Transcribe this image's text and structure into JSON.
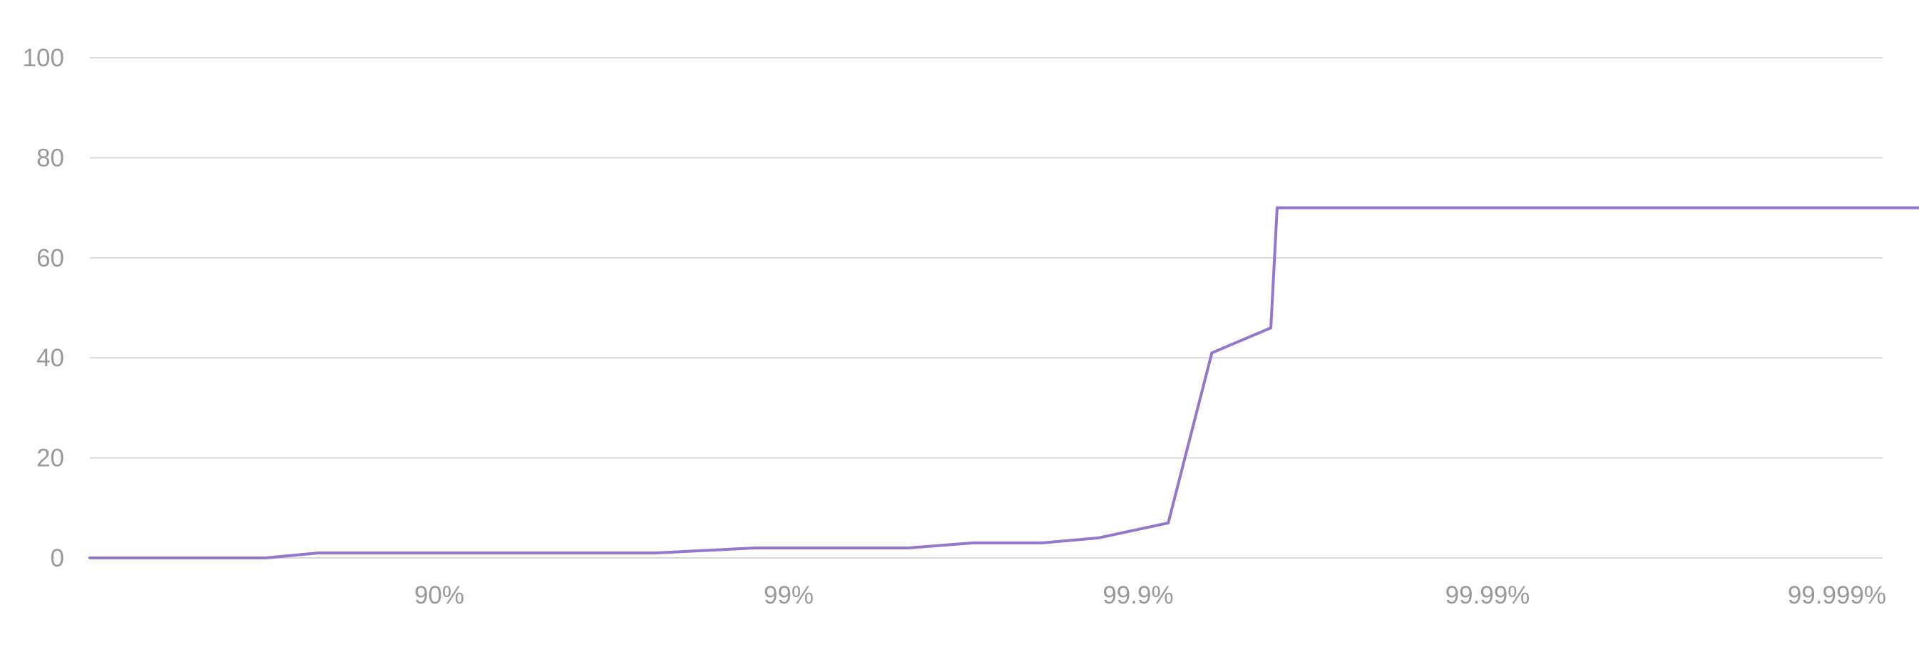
{
  "chart_data": {
    "type": "line",
    "title": "",
    "xlabel": "",
    "ylabel": "",
    "x_scale": "percentile (log of 1/(1-p))",
    "ylim": [
      0,
      100
    ],
    "y_ticks": [
      0,
      20,
      40,
      60,
      80,
      100
    ],
    "y_tick_labels": [
      "0",
      "20",
      "40",
      "60",
      "80",
      "100"
    ],
    "x_ticks": [
      90,
      99,
      99.9,
      99.99,
      99.999
    ],
    "x_tick_labels": [
      "90%",
      "99%",
      "99.9%",
      "99.99%",
      "99.999%"
    ],
    "grid": true,
    "legend": "none",
    "colors": {
      "series": "#9575cd",
      "grid": "#d9d9d9",
      "axis_text": "#999999",
      "background": "#ffffff"
    },
    "series": [
      {
        "x": [
          0,
          68.6,
          77.8,
          97.6,
          98.75,
          99.546,
          99.703,
          99.812,
          99.87,
          99.918,
          99.9385,
          99.9583,
          99.96,
          99.9996
        ],
        "values": [
          0,
          0,
          1,
          1,
          2,
          2,
          3,
          3,
          4,
          7,
          41,
          46,
          70,
          70
        ]
      }
    ]
  }
}
